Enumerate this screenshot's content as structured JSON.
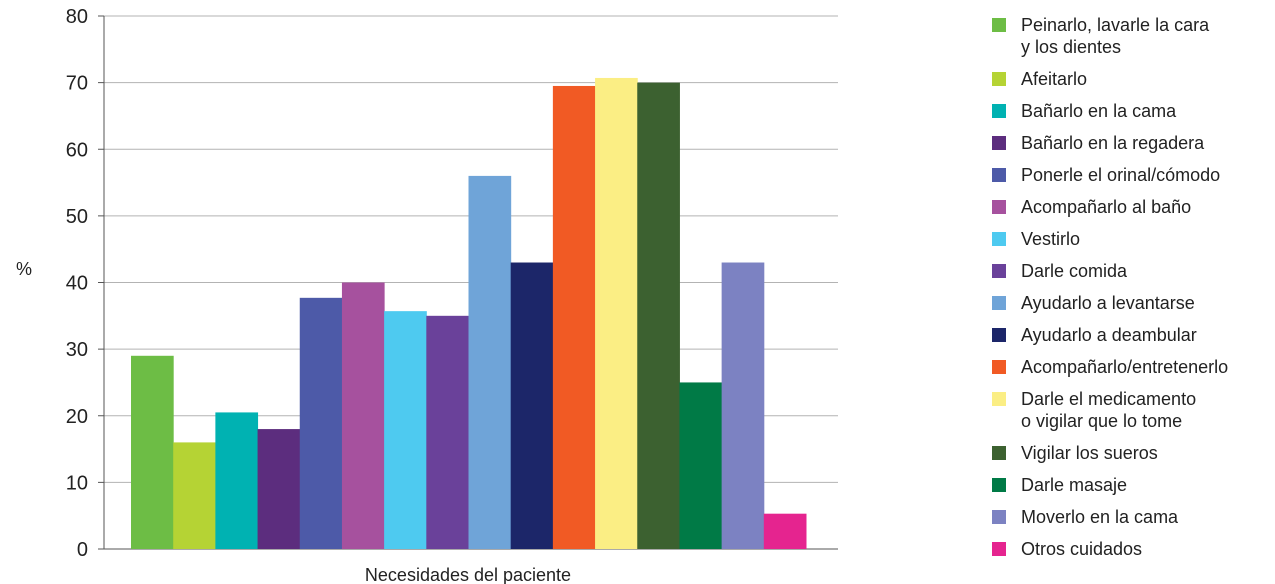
{
  "chart_data": {
    "type": "bar",
    "xlabel": "Necesidades del paciente",
    "ylabel": "%",
    "ylim": [
      0,
      80
    ],
    "yticks": [
      0,
      10,
      20,
      30,
      40,
      50,
      60,
      70,
      80
    ],
    "grid": "horizontal",
    "legend_position": "right",
    "series": [
      {
        "name": "Peinarlo, lavarle la cara y los dientes",
        "value": 29,
        "color": "#6dbd45"
      },
      {
        "name": "Afeitarlo",
        "value": 16,
        "color": "#b5d334"
      },
      {
        "name": "Bañarlo en la cama",
        "value": 20.5,
        "color": "#00b2b2"
      },
      {
        "name": "Bañarlo en la regadera",
        "value": 18,
        "color": "#5c2d7e"
      },
      {
        "name": "Ponerle el orinal/cómodo",
        "value": 37.7,
        "color": "#4d5aa8"
      },
      {
        "name": "Acompañarlo al baño",
        "value": 40,
        "color": "#a6519e"
      },
      {
        "name": "Vestirlo",
        "value": 35.7,
        "color": "#4ecaf0"
      },
      {
        "name": "Darle comida",
        "value": 35,
        "color": "#6a419a"
      },
      {
        "name": "Ayudarlo a levantarse",
        "value": 56,
        "color": "#6fa4d8"
      },
      {
        "name": "Ayudarlo a deambular",
        "value": 43,
        "color": "#1c2669"
      },
      {
        "name": "Acompañarlo/entretenerlo",
        "value": 69.5,
        "color": "#f15a24"
      },
      {
        "name": "Darle el medicamento o vigilar que lo tome",
        "value": 70.7,
        "color": "#fbee84"
      },
      {
        "name": "Vigilar los sueros",
        "value": 70,
        "color": "#3c6130"
      },
      {
        "name": "Darle masaje",
        "value": 25,
        "color": "#007a46"
      },
      {
        "name": "Moverlo en la cama",
        "value": 43,
        "color": "#7c82c2"
      },
      {
        "name": "Otros cuidados",
        "value": 5.3,
        "color": "#e5248f"
      }
    ],
    "legend_lines": [
      [
        "Peinarlo, lavarle la cara",
        "y los dientes"
      ],
      [
        "Afeitarlo"
      ],
      [
        "Bañarlo en la cama"
      ],
      [
        "Bañarlo en la regadera"
      ],
      [
        "Ponerle el orinal/cómodo"
      ],
      [
        "Acompañarlo al baño"
      ],
      [
        "Vestirlo"
      ],
      [
        "Darle comida"
      ],
      [
        "Ayudarlo a levantarse"
      ],
      [
        "Ayudarlo a deambular"
      ],
      [
        "Acompañarlo/entretenerlo"
      ],
      [
        "Darle el medicamento",
        "o vigilar que lo tome"
      ],
      [
        "Vigilar los sueros"
      ],
      [
        "Darle masaje"
      ],
      [
        "Moverlo en la cama"
      ],
      [
        "Otros cuidados"
      ]
    ]
  }
}
